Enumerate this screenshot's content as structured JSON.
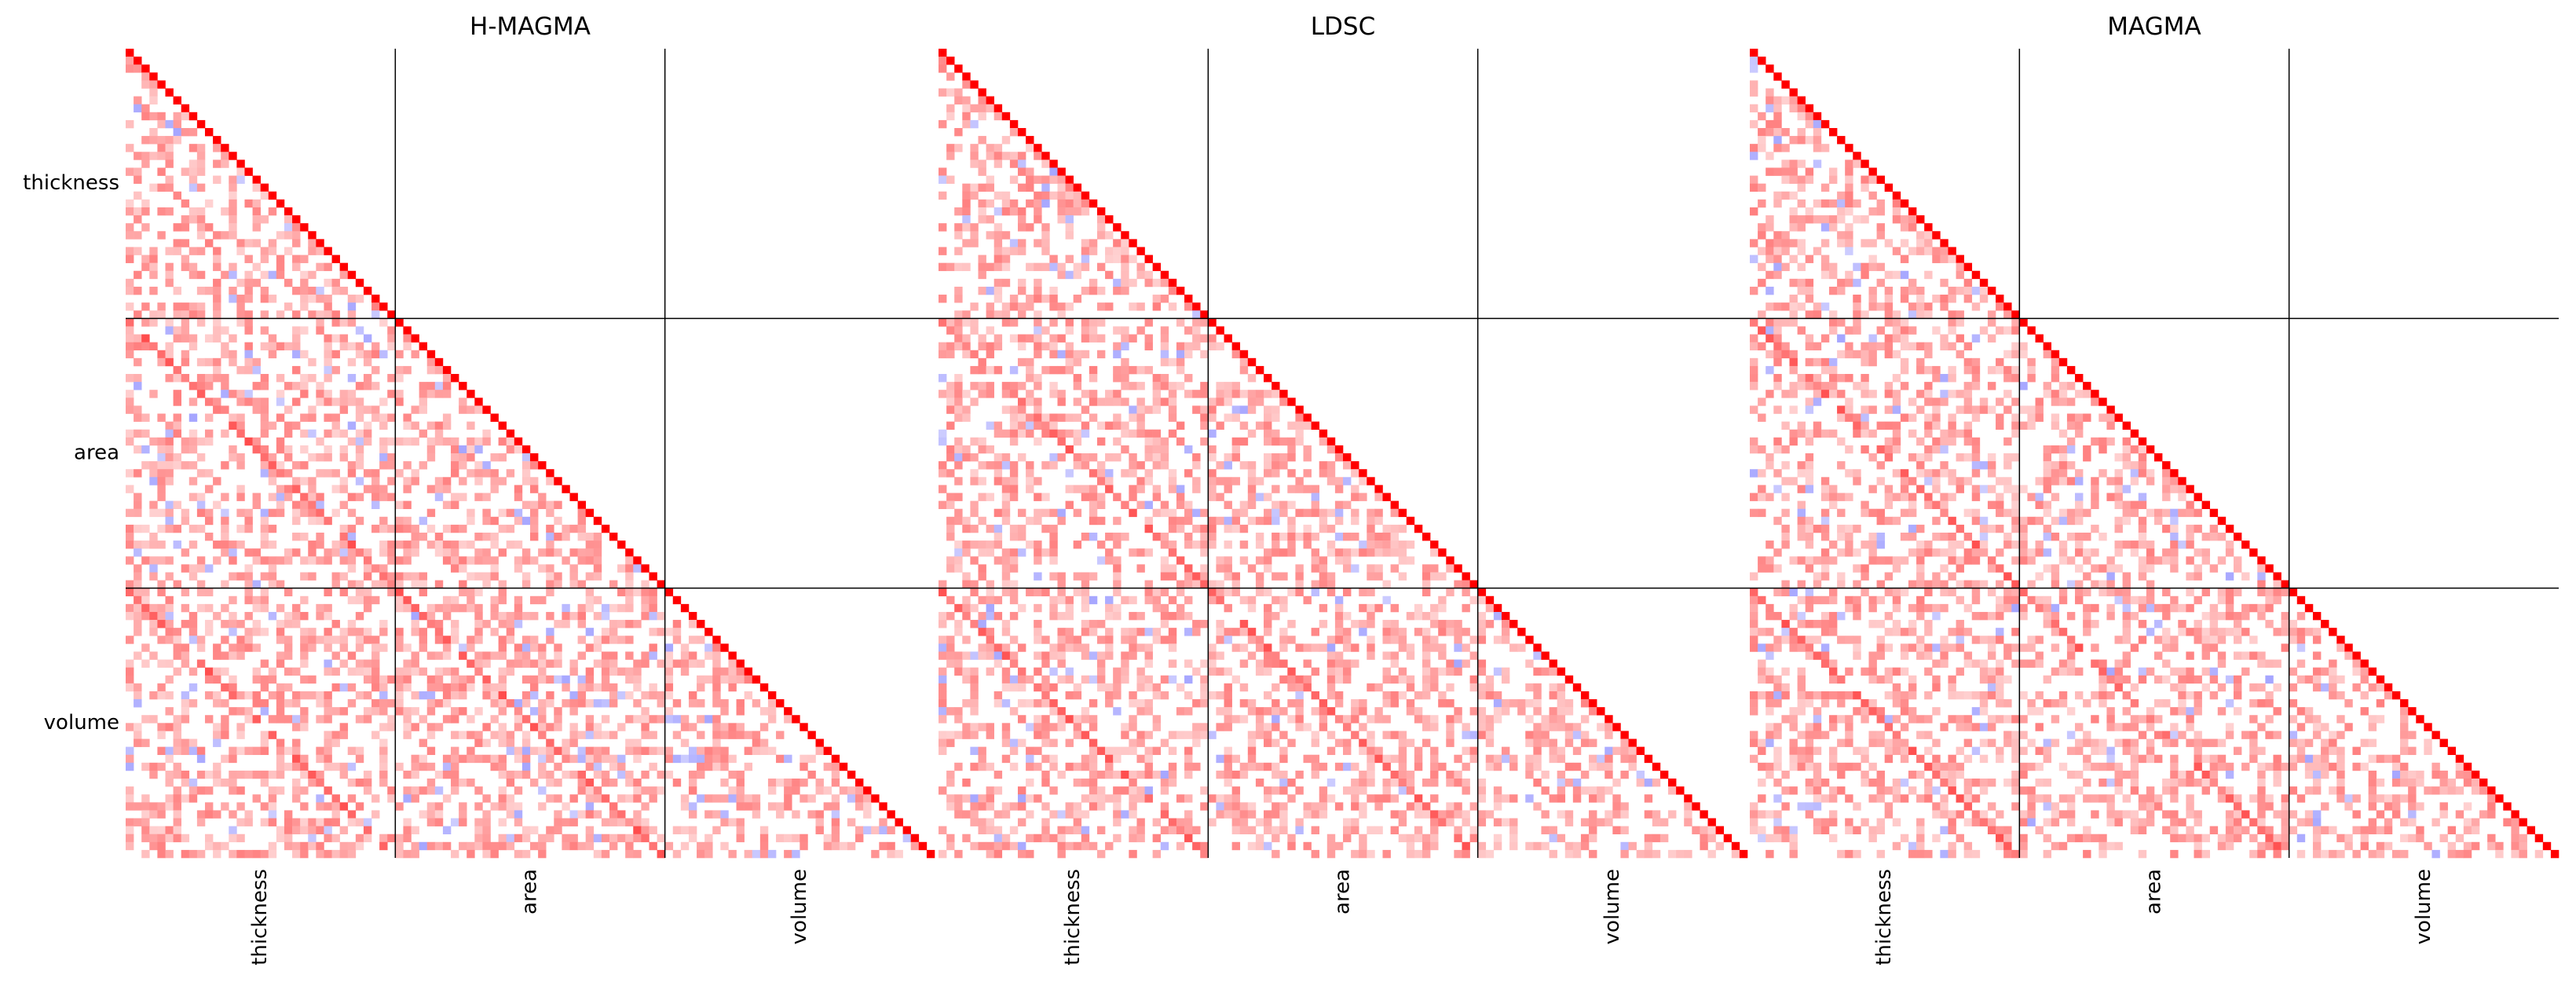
{
  "figure": {
    "colors": {
      "diagonal": "#ff0000",
      "positive": "#ff0000",
      "negative": "#0000ff",
      "background": "#ffffff",
      "grid_line": "#000000"
    }
  },
  "chart_data": [
    {
      "type": "heatmap",
      "title": "H-MAGMA",
      "row_labels": [
        "thickness",
        "area",
        "volume"
      ],
      "col_labels": [
        "thickness",
        "area",
        "volume"
      ],
      "n_per_group": 34,
      "n_total": 102,
      "lower_triangular": true,
      "value_range": [
        -1,
        1
      ],
      "diagonal_value": 1,
      "block_boundaries": [
        34,
        68
      ],
      "show_row_labels": true
    },
    {
      "type": "heatmap",
      "title": "LDSC",
      "row_labels": [
        "thickness",
        "area",
        "volume"
      ],
      "col_labels": [
        "thickness",
        "area",
        "volume"
      ],
      "n_per_group": 34,
      "n_total": 102,
      "lower_triangular": true,
      "value_range": [
        -1,
        1
      ],
      "diagonal_value": 1,
      "block_boundaries": [
        34,
        68
      ],
      "show_row_labels": false
    },
    {
      "type": "heatmap",
      "title": "MAGMA",
      "row_labels": [
        "thickness",
        "area",
        "volume"
      ],
      "col_labels": [
        "thickness",
        "area",
        "volume"
      ],
      "n_per_group": 34,
      "n_total": 102,
      "lower_triangular": true,
      "value_range": [
        -1,
        1
      ],
      "diagonal_value": 1,
      "block_boundaries": [
        34,
        68
      ],
      "show_row_labels": false
    }
  ]
}
